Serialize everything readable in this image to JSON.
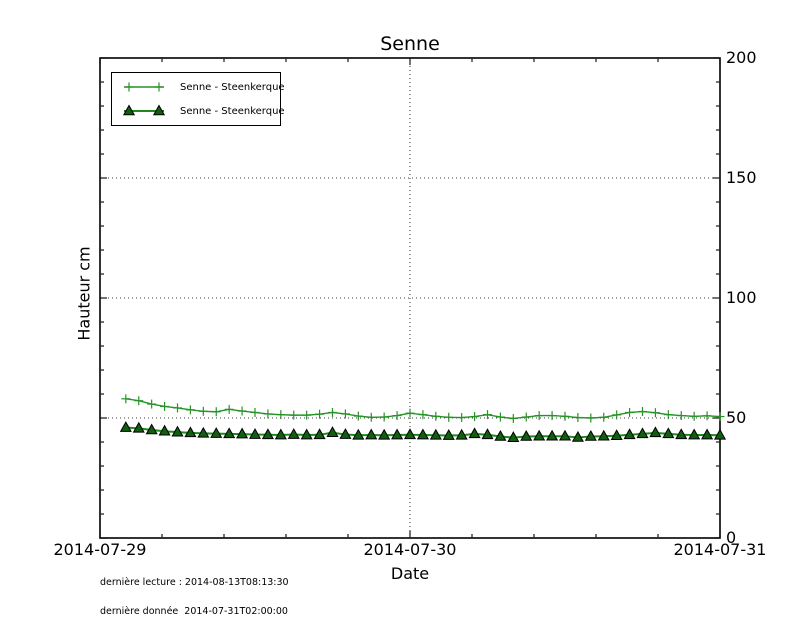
{
  "title": "Senne",
  "axes": {
    "xlabel": "Date",
    "ylabel": "Hauteur cm",
    "ytick_labels": [
      "200",
      "150",
      "100",
      "50",
      "0"
    ],
    "xtick_labels": [
      "2014-07-29",
      "2014-07-30",
      "2014-07-31"
    ]
  },
  "legend": {
    "entries": [
      {
        "label": "Senne - Steenkerque"
      },
      {
        "label": "Senne - Steenkerque"
      }
    ]
  },
  "footer": {
    "line1": "dernière lecture : 2014-08-13T08:13:30",
    "line2": "dernière donnée  2014-07-31T02:00:00"
  },
  "chart_data": {
    "type": "line",
    "title": "Senne",
    "xlabel": "Date",
    "ylabel": "Hauteur cm",
    "ylim": [
      0,
      200
    ],
    "yticks": [
      0,
      50,
      100,
      150,
      200
    ],
    "y_minor_step": 10,
    "x_range_hours": [
      0,
      48
    ],
    "xticks_hours": [
      0,
      24,
      48
    ],
    "xtick_labels": [
      "2014-07-29",
      "2014-07-30",
      "2014-07-31"
    ],
    "x_minor_step_hours": 4.8,
    "grid": "dotted",
    "x_unit": "hours since 2014-07-29T00:00",
    "x_hours": [
      2,
      3,
      4,
      5,
      6,
      7,
      8,
      9,
      10,
      11,
      12,
      13,
      14,
      15,
      16,
      17,
      18,
      19,
      20,
      21,
      22,
      23,
      24,
      25,
      26,
      27,
      28,
      29,
      30,
      31,
      32,
      33,
      34,
      35,
      36,
      37,
      38,
      39,
      40,
      41,
      42,
      43,
      44,
      45,
      46,
      47,
      48
    ],
    "series": [
      {
        "name": "Senne - Steenkerque",
        "marker": "plus",
        "color": "#279327",
        "values": [
          58.0,
          57.2,
          55.8,
          54.8,
          54.2,
          53.4,
          52.8,
          52.6,
          53.6,
          52.9,
          52.3,
          51.7,
          51.4,
          51.2,
          51.2,
          51.6,
          52.3,
          51.7,
          50.8,
          50.3,
          50.4,
          51.0,
          52.0,
          51.4,
          50.7,
          50.3,
          50.2,
          50.6,
          51.4,
          50.4,
          49.8,
          50.4,
          51.0,
          51.0,
          50.7,
          50.2,
          50.0,
          50.3,
          51.3,
          52.3,
          52.7,
          52.2,
          51.4,
          51.0,
          50.7,
          50.9,
          50.6
        ]
      },
      {
        "name": "Senne - Steenkerque",
        "marker": "triangle",
        "color": "#1d8a1d",
        "marker_fill": "#115e11",
        "marker_edge": "#000000",
        "values": [
          46.0,
          45.7,
          45.0,
          44.5,
          44.1,
          43.8,
          43.6,
          43.5,
          43.4,
          43.3,
          43.1,
          43.0,
          42.9,
          43.1,
          42.9,
          43.0,
          43.9,
          43.1,
          42.8,
          42.9,
          42.8,
          42.9,
          43.0,
          42.9,
          42.8,
          42.7,
          42.8,
          43.4,
          43.0,
          42.3,
          41.8,
          42.3,
          42.4,
          42.4,
          42.4,
          41.9,
          42.3,
          42.4,
          42.6,
          43.0,
          43.4,
          43.8,
          43.4,
          43.0,
          42.9,
          42.9,
          42.8
        ]
      }
    ]
  }
}
